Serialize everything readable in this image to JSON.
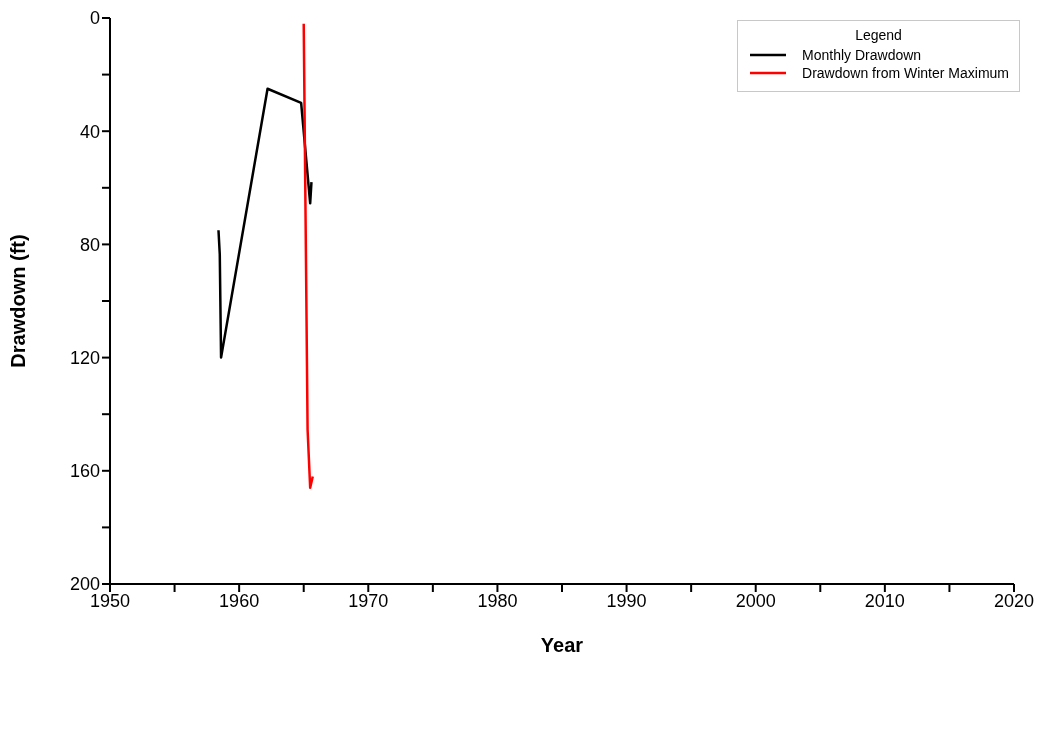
{
  "chart_data": {
    "type": "line",
    "xlabel": "Year",
    "ylabel": "Drawdown (ft)",
    "legend_title": "Legend",
    "legend": "top right",
    "marker": "none",
    "line_style": "solid",
    "xlim": [
      1950,
      2020
    ],
    "xticks": [
      1950,
      {
        "value": 1955,
        "label": null
      },
      1960,
      {
        "value": 1965,
        "label": null
      },
      1970,
      {
        "value": 1975,
        "label": null
      },
      1980,
      {
        "value": 1985,
        "label": null
      },
      1990,
      {
        "value": 1995,
        "label": null
      },
      2000,
      {
        "value": 2005,
        "label": null
      },
      2010,
      {
        "value": 2015,
        "label": null
      },
      2020
    ],
    "ylim": [
      200,
      0
    ],
    "yticks": [
      0,
      {
        "value": 20,
        "label": null
      },
      40,
      {
        "value": 60,
        "label": null
      },
      80,
      {
        "value": 100,
        "label": null
      },
      120,
      {
        "value": 140,
        "label": null
      },
      160,
      {
        "value": 180,
        "label": null
      },
      200
    ],
    "series": [
      {
        "name": "Monthly Drawdown",
        "color": "#000000",
        "x": [
          1958.4,
          1958.5,
          1958.6,
          1962.2,
          1964.8,
          1965.5,
          1965.6
        ],
        "values": [
          75,
          83.5,
          120,
          25,
          30,
          65.5,
          58
        ]
      },
      {
        "name": "Drawdown from Winter Maximum",
        "color": "#ff0000",
        "x": [
          1965.0,
          1965.3,
          1965.5,
          1965.7
        ],
        "values": [
          2,
          145.5,
          166,
          162
        ]
      }
    ]
  }
}
